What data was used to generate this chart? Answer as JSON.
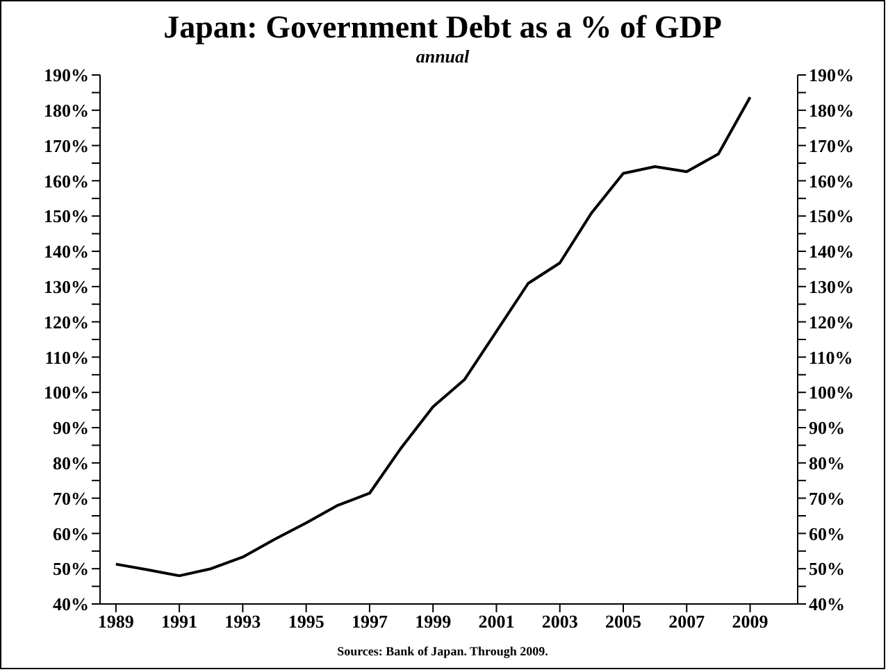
{
  "chart_data": {
    "type": "line",
    "title": "Japan: Government Debt as a % of GDP",
    "subtitle": "annual",
    "annotations": [
      "Sources: Bank of Japan. Through 2009."
    ],
    "x": [
      1989,
      1990,
      1991,
      1992,
      1993,
      1994,
      1995,
      1996,
      1997,
      1998,
      1999,
      2000,
      2001,
      2002,
      2003,
      2004,
      2005,
      2006,
      2007,
      2008,
      2009
    ],
    "series": [
      {
        "color": "#000000",
        "values": [
          51.3,
          49.7,
          48,
          50,
          53.3,
          58.3,
          63,
          68,
          71.4,
          84.3,
          95.9,
          103.7,
          117.3,
          130.9,
          136.7,
          150.9,
          162.1,
          164,
          162.6,
          167.6,
          183.7
        ]
      }
    ],
    "marker": "none",
    "grid": false,
    "xlim": [
      1988.5,
      2010.5
    ],
    "xticks": [
      1989,
      1991,
      1993,
      1995,
      1997,
      1999,
      2001,
      2003,
      2005,
      2007,
      2009
    ],
    "ylim": [
      40,
      190
    ],
    "yticks": [
      {
        "value": 40,
        "label": "40%"
      },
      {
        "value": 45,
        "label": null
      },
      {
        "value": 50,
        "label": "50%"
      },
      {
        "value": 55,
        "label": null
      },
      {
        "value": 60,
        "label": "60%"
      },
      {
        "value": 65,
        "label": null
      },
      {
        "value": 70,
        "label": "70%"
      },
      {
        "value": 75,
        "label": null
      },
      {
        "value": 80,
        "label": "80%"
      },
      {
        "value": 85,
        "label": null
      },
      {
        "value": 90,
        "label": "90%"
      },
      {
        "value": 95,
        "label": null
      },
      {
        "value": 100,
        "label": "100%"
      },
      {
        "value": 105,
        "label": null
      },
      {
        "value": 110,
        "label": "110%"
      },
      {
        "value": 115,
        "label": null
      },
      {
        "value": 120,
        "label": "120%"
      },
      {
        "value": 125,
        "label": null
      },
      {
        "value": 130,
        "label": "130%"
      },
      {
        "value": 135,
        "label": null
      },
      {
        "value": 140,
        "label": "140%"
      },
      {
        "value": 145,
        "label": null
      },
      {
        "value": 150,
        "label": "150%"
      },
      {
        "value": 155,
        "label": null
      },
      {
        "value": 160,
        "label": "160%"
      },
      {
        "value": 165,
        "label": null
      },
      {
        "value": 170,
        "label": "170%"
      },
      {
        "value": 175,
        "label": null
      },
      {
        "value": 180,
        "label": "180%"
      },
      {
        "value": 185,
        "label": null
      },
      {
        "value": 190,
        "label": "190%"
      }
    ],
    "y2lim": [
      40,
      190
    ],
    "y2ticks": [
      {
        "value": 40,
        "label": "40%"
      },
      {
        "value": 45,
        "label": null
      },
      {
        "value": 50,
        "label": "50%"
      },
      {
        "value": 55,
        "label": null
      },
      {
        "value": 60,
        "label": "60%"
      },
      {
        "value": 65,
        "label": null
      },
      {
        "value": 70,
        "label": "70%"
      },
      {
        "value": 75,
        "label": null
      },
      {
        "value": 80,
        "label": "80%"
      },
      {
        "value": 85,
        "label": null
      },
      {
        "value": 90,
        "label": "90%"
      },
      {
        "value": 95,
        "label": null
      },
      {
        "value": 100,
        "label": "100%"
      },
      {
        "value": 105,
        "label": null
      },
      {
        "value": 110,
        "label": "110%"
      },
      {
        "value": 115,
        "label": null
      },
      {
        "value": 120,
        "label": "120%"
      },
      {
        "value": 125,
        "label": null
      },
      {
        "value": 130,
        "label": "130%"
      },
      {
        "value": 135,
        "label": null
      },
      {
        "value": 140,
        "label": "140%"
      },
      {
        "value": 145,
        "label": null
      },
      {
        "value": 150,
        "label": "150%"
      },
      {
        "value": 155,
        "label": null
      },
      {
        "value": 160,
        "label": "160%"
      },
      {
        "value": 165,
        "label": null
      },
      {
        "value": 170,
        "label": "170%"
      },
      {
        "value": 175,
        "label": null
      },
      {
        "value": 180,
        "label": "180%"
      },
      {
        "value": 185,
        "label": null
      },
      {
        "value": 190,
        "label": "190%"
      }
    ]
  }
}
